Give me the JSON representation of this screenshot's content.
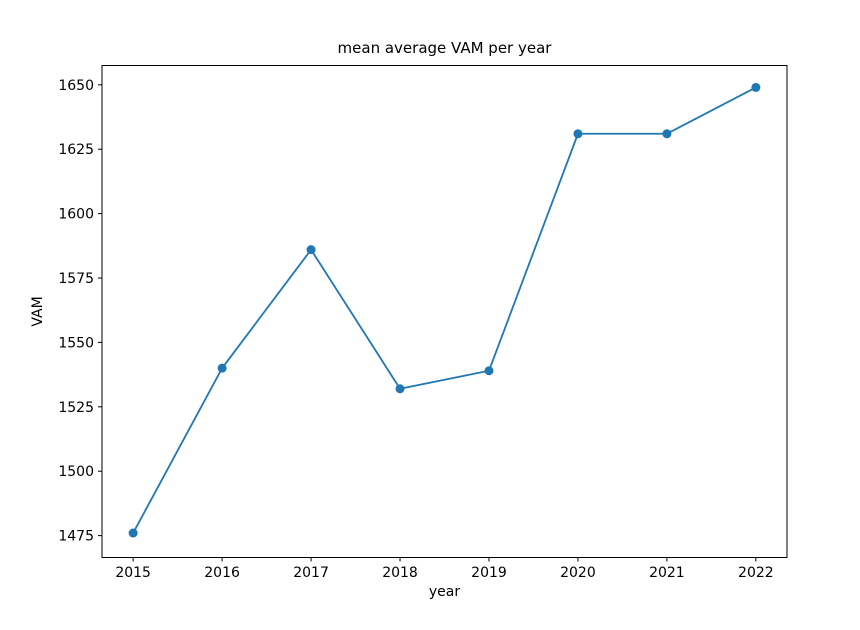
{
  "chart_data": {
    "type": "line",
    "title": "mean average VAM per year",
    "xlabel": "year",
    "ylabel": "VAM",
    "x": [
      2015,
      2016,
      2017,
      2018,
      2019,
      2020,
      2021,
      2022
    ],
    "values": [
      1476,
      1540,
      1586,
      1532,
      1539,
      1631,
      1631,
      1649
    ],
    "xticks": [
      2015,
      2016,
      2017,
      2018,
      2019,
      2020,
      2021,
      2022
    ],
    "yticks": [
      1475,
      1500,
      1525,
      1550,
      1575,
      1600,
      1625,
      1650
    ],
    "xlim": [
      2014.65,
      2022.35
    ],
    "ylim": [
      1466.5,
      1657.5
    ],
    "grid": false,
    "legend": "none",
    "line_color": "#1f77b4",
    "marker": "o",
    "text_color": "#000000",
    "spine_color": "#000000",
    "background_color": "#ffffff"
  }
}
